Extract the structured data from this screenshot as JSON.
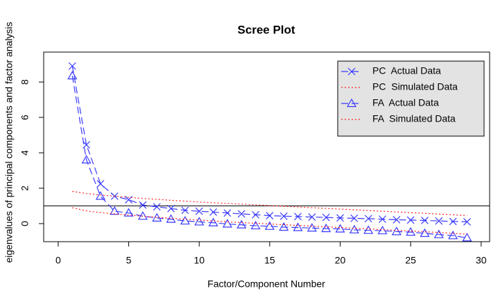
{
  "chart_data": {
    "type": "line",
    "title": "Scree Plot",
    "x_label": "Factor/Component Number",
    "y_label": "eigenvalues of principal components and factor analysis",
    "x": [
      1,
      2,
      3,
      4,
      5,
      6,
      7,
      8,
      9,
      10,
      11,
      12,
      13,
      14,
      15,
      16,
      17,
      18,
      19,
      20,
      21,
      22,
      23,
      24,
      25,
      26,
      27,
      28,
      29
    ],
    "series": [
      {
        "name": "PC  Actual Data",
        "color": "#3a3aff",
        "marker": "x",
        "linestyle": "dashed",
        "values": [
          8.9,
          4.45,
          2.25,
          1.55,
          1.35,
          1.05,
          0.95,
          0.85,
          0.75,
          0.7,
          0.65,
          0.6,
          0.55,
          0.5,
          0.45,
          0.42,
          0.4,
          0.37,
          0.35,
          0.32,
          0.3,
          0.28,
          0.25,
          0.22,
          0.2,
          0.18,
          0.15,
          0.12,
          0.1
        ]
      },
      {
        "name": "PC  Simulated Data",
        "color": "#ff2020",
        "marker": "none",
        "linestyle": "dotted",
        "values": [
          1.82,
          1.7,
          1.62,
          1.55,
          1.48,
          1.42,
          1.37,
          1.32,
          1.27,
          1.22,
          1.18,
          1.14,
          1.1,
          1.06,
          1.02,
          0.98,
          0.94,
          0.9,
          0.86,
          0.82,
          0.78,
          0.74,
          0.7,
          0.66,
          0.62,
          0.58,
          0.54,
          0.5,
          0.45
        ]
      },
      {
        "name": "FA  Actual Data",
        "color": "#3a3aff",
        "marker": "triangle",
        "linestyle": "dashed",
        "values": [
          8.35,
          3.6,
          1.55,
          0.7,
          0.6,
          0.42,
          0.32,
          0.25,
          0.15,
          0.1,
          0.05,
          -0.02,
          -0.07,
          -0.12,
          -0.15,
          -0.2,
          -0.22,
          -0.25,
          -0.28,
          -0.3,
          -0.35,
          -0.38,
          -0.4,
          -0.45,
          -0.48,
          -0.55,
          -0.62,
          -0.68,
          -0.8
        ]
      },
      {
        "name": "FA  Simulated Data",
        "color": "#ff2020",
        "marker": "none",
        "linestyle": "dotted",
        "values": [
          0.9,
          0.72,
          0.62,
          0.55,
          0.48,
          0.42,
          0.36,
          0.3,
          0.25,
          0.2,
          0.15,
          0.1,
          0.06,
          0.02,
          -0.02,
          -0.06,
          -0.1,
          -0.14,
          -0.18,
          -0.22,
          -0.26,
          -0.3,
          -0.34,
          -0.38,
          -0.42,
          -0.46,
          -0.5,
          -0.55,
          -0.6
        ]
      }
    ],
    "reference_line": 1,
    "xlim": [
      -1.03,
      30.6
    ],
    "ylim": [
      -1.02,
      9.69
    ],
    "xticks": [
      0,
      5,
      10,
      15,
      20,
      25,
      30
    ],
    "yticks": [
      0,
      2,
      4,
      6,
      8
    ],
    "legend": "top-right",
    "legend_background": "#e3e3e3",
    "legend_text_color": "#0a9a0a"
  }
}
